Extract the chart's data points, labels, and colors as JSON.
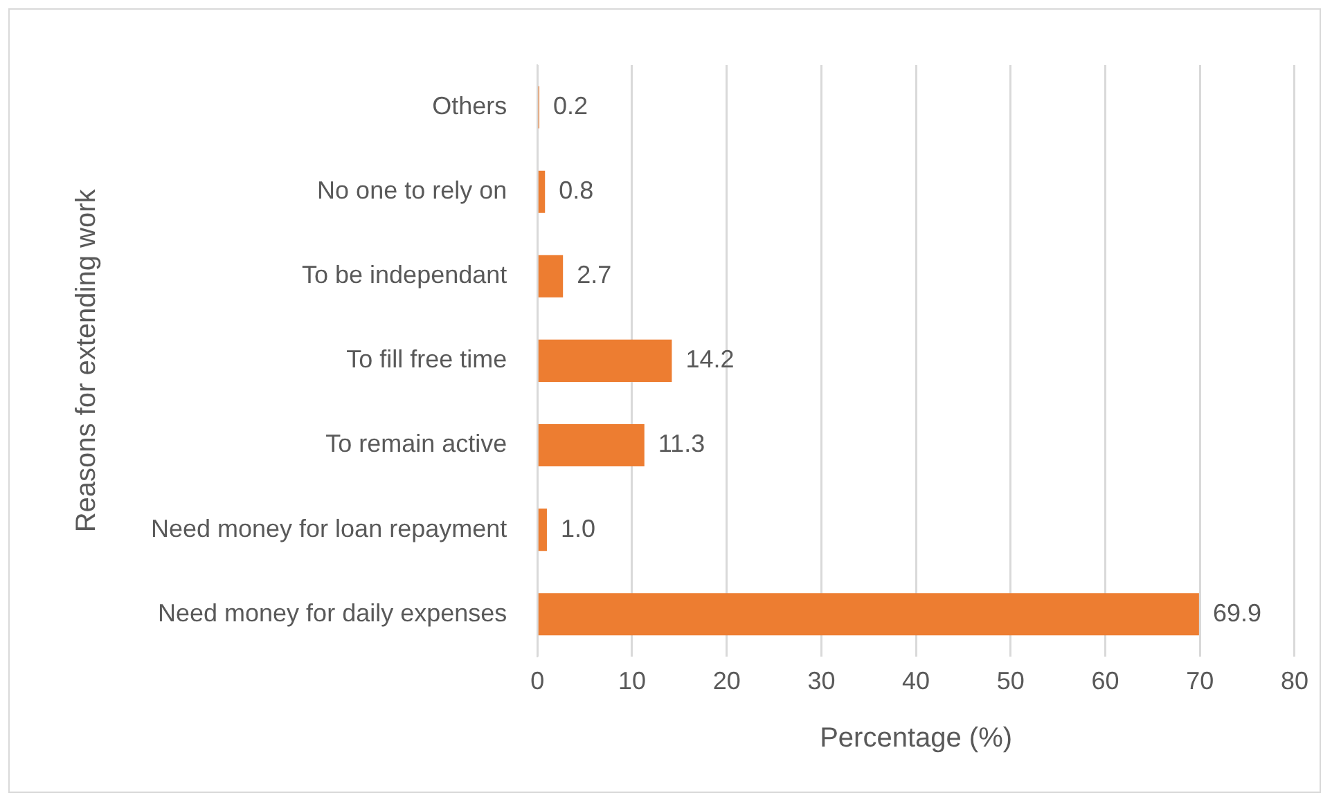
{
  "chart_data": {
    "type": "bar",
    "orientation": "horizontal",
    "ylabel": "Reasons for extending work",
    "xlabel": "Percentage (%)",
    "categories": [
      "Others",
      "No one to rely on",
      "To be independant",
      "To fill free time",
      "To remain active",
      "Need money for loan repayment",
      "Need money for daily expenses"
    ],
    "values": [
      0.2,
      0.8,
      2.7,
      14.2,
      11.3,
      1.0,
      69.9
    ],
    "value_labels": [
      "0.2",
      "0.8",
      "2.7",
      "14.2",
      "11.3",
      "1.0",
      "69.9"
    ],
    "color": "#ed7d31",
    "xlim": [
      0,
      80
    ],
    "xticks": [
      0,
      10,
      20,
      30,
      40,
      50,
      60,
      70,
      80
    ],
    "grid": "x",
    "legend": false
  }
}
